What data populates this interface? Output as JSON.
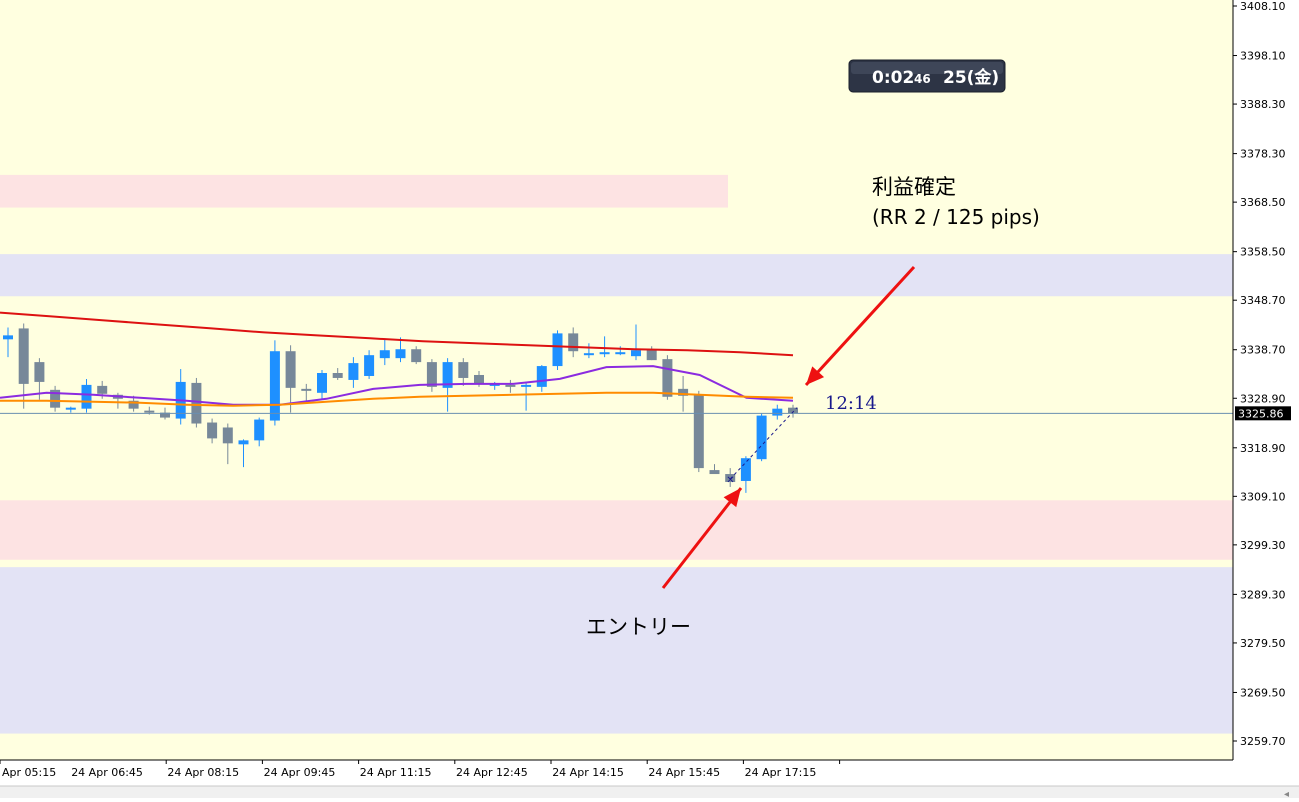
{
  "chart_data": {
    "type": "candlestick",
    "symbol_timeframe": "M15",
    "price_axis": {
      "min": 3258.0,
      "max": 3410.0,
      "ticks": [
        "3408.10",
        "3398.10",
        "3388.30",
        "3378.30",
        "3368.50",
        "3358.50",
        "3348.70",
        "3338.70",
        "3328.90",
        "3318.90",
        "3309.10",
        "3299.30",
        "3289.30",
        "3279.50",
        "3269.50",
        "3259.70"
      ],
      "current_price": "3325.86"
    },
    "time_axis": {
      "ticks": [
        "Apr 05:15",
        "24 Apr 06:45",
        "24 Apr 08:15",
        "24 Apr 09:45",
        "24 Apr 11:15",
        "24 Apr 12:45",
        "24 Apr 14:15",
        "24 Apr 15:45",
        "24 Apr 17:15"
      ]
    },
    "zones": [
      {
        "kind": "supply",
        "color": "#fde3e3",
        "from": 3367.4,
        "to": 3374.0,
        "extends": "partial"
      },
      {
        "kind": "demand",
        "color": "#e3e3f5",
        "from": 3349.5,
        "to": 3358.0,
        "extends": "full"
      },
      {
        "kind": "supply",
        "color": "#fde3e3",
        "from": 3296.3,
        "to": 3308.3,
        "extends": "full"
      },
      {
        "kind": "demand",
        "color": "#e3e3f5",
        "from": 3261.2,
        "to": 3294.8,
        "extends": "full"
      }
    ],
    "candles": [
      {
        "o": 3340.8,
        "h": 3343.2,
        "l": 3337.2,
        "c": 3341.6
      },
      {
        "o": 3343.0,
        "h": 3344.0,
        "l": 3326.8,
        "c": 3331.8
      },
      {
        "o": 3336.2,
        "h": 3337.0,
        "l": 3328.6,
        "c": 3332.2
      },
      {
        "o": 3330.6,
        "h": 3331.4,
        "l": 3326.2,
        "c": 3327.0
      },
      {
        "o": 3326.6,
        "h": 3327.2,
        "l": 3326.0,
        "c": 3327.0
      },
      {
        "o": 3326.8,
        "h": 3332.8,
        "l": 3326.0,
        "c": 3331.6
      },
      {
        "o": 3331.4,
        "h": 3332.4,
        "l": 3328.8,
        "c": 3329.8
      },
      {
        "o": 3329.6,
        "h": 3330.0,
        "l": 3326.8,
        "c": 3328.8
      },
      {
        "o": 3328.4,
        "h": 3329.4,
        "l": 3326.2,
        "c": 3326.8
      },
      {
        "o": 3326.4,
        "h": 3327.2,
        "l": 3325.6,
        "c": 3326.0
      },
      {
        "o": 3326.0,
        "h": 3327.0,
        "l": 3324.6,
        "c": 3325.0
      },
      {
        "o": 3324.8,
        "h": 3334.8,
        "l": 3323.6,
        "c": 3332.2
      },
      {
        "o": 3332.0,
        "h": 3333.0,
        "l": 3323.0,
        "c": 3323.8
      },
      {
        "o": 3324.0,
        "h": 3324.8,
        "l": 3319.8,
        "c": 3320.8
      },
      {
        "o": 3323.0,
        "h": 3323.8,
        "l": 3315.6,
        "c": 3319.8
      },
      {
        "o": 3319.6,
        "h": 3320.6,
        "l": 3315.0,
        "c": 3320.4
      },
      {
        "o": 3320.4,
        "h": 3325.0,
        "l": 3319.2,
        "c": 3324.6
      },
      {
        "o": 3324.4,
        "h": 3340.6,
        "l": 3323.4,
        "c": 3338.4
      },
      {
        "o": 3338.4,
        "h": 3339.6,
        "l": 3326.0,
        "c": 3331.0
      },
      {
        "o": 3330.8,
        "h": 3331.8,
        "l": 3328.4,
        "c": 3330.4
      },
      {
        "o": 3330.0,
        "h": 3334.6,
        "l": 3328.8,
        "c": 3334.0
      },
      {
        "o": 3334.0,
        "h": 3335.0,
        "l": 3332.6,
        "c": 3333.0
      },
      {
        "o": 3332.6,
        "h": 3337.2,
        "l": 3331.0,
        "c": 3336.0
      },
      {
        "o": 3333.4,
        "h": 3338.6,
        "l": 3332.8,
        "c": 3337.6
      },
      {
        "o": 3337.0,
        "h": 3341.0,
        "l": 3335.6,
        "c": 3338.6
      },
      {
        "o": 3337.0,
        "h": 3341.2,
        "l": 3336.2,
        "c": 3338.8
      },
      {
        "o": 3338.8,
        "h": 3339.4,
        "l": 3335.8,
        "c": 3336.2
      },
      {
        "o": 3336.2,
        "h": 3336.8,
        "l": 3330.2,
        "c": 3331.2
      },
      {
        "o": 3331.0,
        "h": 3337.0,
        "l": 3326.2,
        "c": 3336.2
      },
      {
        "o": 3336.2,
        "h": 3337.0,
        "l": 3331.4,
        "c": 3333.0
      },
      {
        "o": 3333.6,
        "h": 3334.4,
        "l": 3331.2,
        "c": 3331.8
      },
      {
        "o": 3331.6,
        "h": 3332.2,
        "l": 3330.6,
        "c": 3331.8
      },
      {
        "o": 3331.6,
        "h": 3332.6,
        "l": 3330.0,
        "c": 3331.4
      },
      {
        "o": 3331.2,
        "h": 3332.0,
        "l": 3326.4,
        "c": 3331.6
      },
      {
        "o": 3331.2,
        "h": 3335.6,
        "l": 3330.2,
        "c": 3335.4
      },
      {
        "o": 3335.4,
        "h": 3342.6,
        "l": 3334.6,
        "c": 3342.0
      },
      {
        "o": 3342.0,
        "h": 3343.2,
        "l": 3337.2,
        "c": 3338.4
      },
      {
        "o": 3337.8,
        "h": 3340.0,
        "l": 3337.0,
        "c": 3338.0
      },
      {
        "o": 3338.0,
        "h": 3341.4,
        "l": 3337.2,
        "c": 3338.2
      },
      {
        "o": 3338.0,
        "h": 3339.4,
        "l": 3337.6,
        "c": 3338.2
      },
      {
        "o": 3337.4,
        "h": 3343.8,
        "l": 3336.6,
        "c": 3338.6
      },
      {
        "o": 3338.6,
        "h": 3339.4,
        "l": 3336.6,
        "c": 3336.6
      },
      {
        "o": 3336.8,
        "h": 3337.6,
        "l": 3328.6,
        "c": 3329.2
      },
      {
        "o": 3330.8,
        "h": 3333.4,
        "l": 3326.2,
        "c": 3329.4
      },
      {
        "o": 3329.6,
        "h": 3330.4,
        "l": 3314.0,
        "c": 3314.8
      },
      {
        "o": 3314.4,
        "h": 3315.6,
        "l": 3313.6,
        "c": 3313.6
      },
      {
        "o": 3313.6,
        "h": 3314.8,
        "l": 3311.0,
        "c": 3312.0
      },
      {
        "o": 3312.2,
        "h": 3317.2,
        "l": 3309.8,
        "c": 3316.8
      },
      {
        "o": 3316.6,
        "h": 3325.8,
        "l": 3316.2,
        "c": 3325.4
      },
      {
        "o": 3325.4,
        "h": 3327.6,
        "l": 3324.6,
        "c": 3326.8
      },
      {
        "o": 3327.0,
        "h": 3327.6,
        "l": 3325.0,
        "c": 3325.86
      }
    ],
    "series": [
      {
        "name": "",
        "color": "#dd1111",
        "values": [
          3346.2,
          3345.4,
          3344.6,
          3343.8,
          3343.0,
          3342.2,
          3341.6,
          3341.0,
          3340.4,
          3340.0,
          3339.6,
          3339.2,
          3338.8,
          3338.6,
          3338.2,
          3337.6
        ]
      },
      {
        "name": "",
        "color": "#8b2be0",
        "values": [
          3329.0,
          3330.0,
          3329.6,
          3329.0,
          3328.4,
          3327.6,
          3327.6,
          3328.8,
          3330.8,
          3331.6,
          3331.8,
          3331.8,
          3332.8,
          3335.2,
          3335.4,
          3333.6,
          3329.0,
          3328.4
        ]
      },
      {
        "name": "",
        "color": "#ff8c00",
        "values": [
          3328.4,
          3328.4,
          3328.2,
          3328.0,
          3327.6,
          3327.4,
          3327.6,
          3328.2,
          3328.8,
          3329.2,
          3329.4,
          3329.6,
          3329.8,
          3330.0,
          3330.0,
          3329.6,
          3329.2,
          3329.0
        ]
      }
    ],
    "annotations": [
      {
        "id": "take-profit",
        "text_lines": [
          "利益確定",
          "(RR 2 / 125 pips)"
        ]
      },
      {
        "id": "entry",
        "text_lines": [
          "エントリー"
        ]
      }
    ],
    "countdown": "12:14"
  },
  "timer": {
    "main": "0:02",
    "seconds": "46",
    "day": "25(金)"
  },
  "colors": {
    "background": "#ffffe0",
    "bull": "#1e90ff",
    "bear": "#778899",
    "arrow": "#ee1111",
    "price_line": "#6a8fb0",
    "price_tag_bg": "#000000"
  }
}
